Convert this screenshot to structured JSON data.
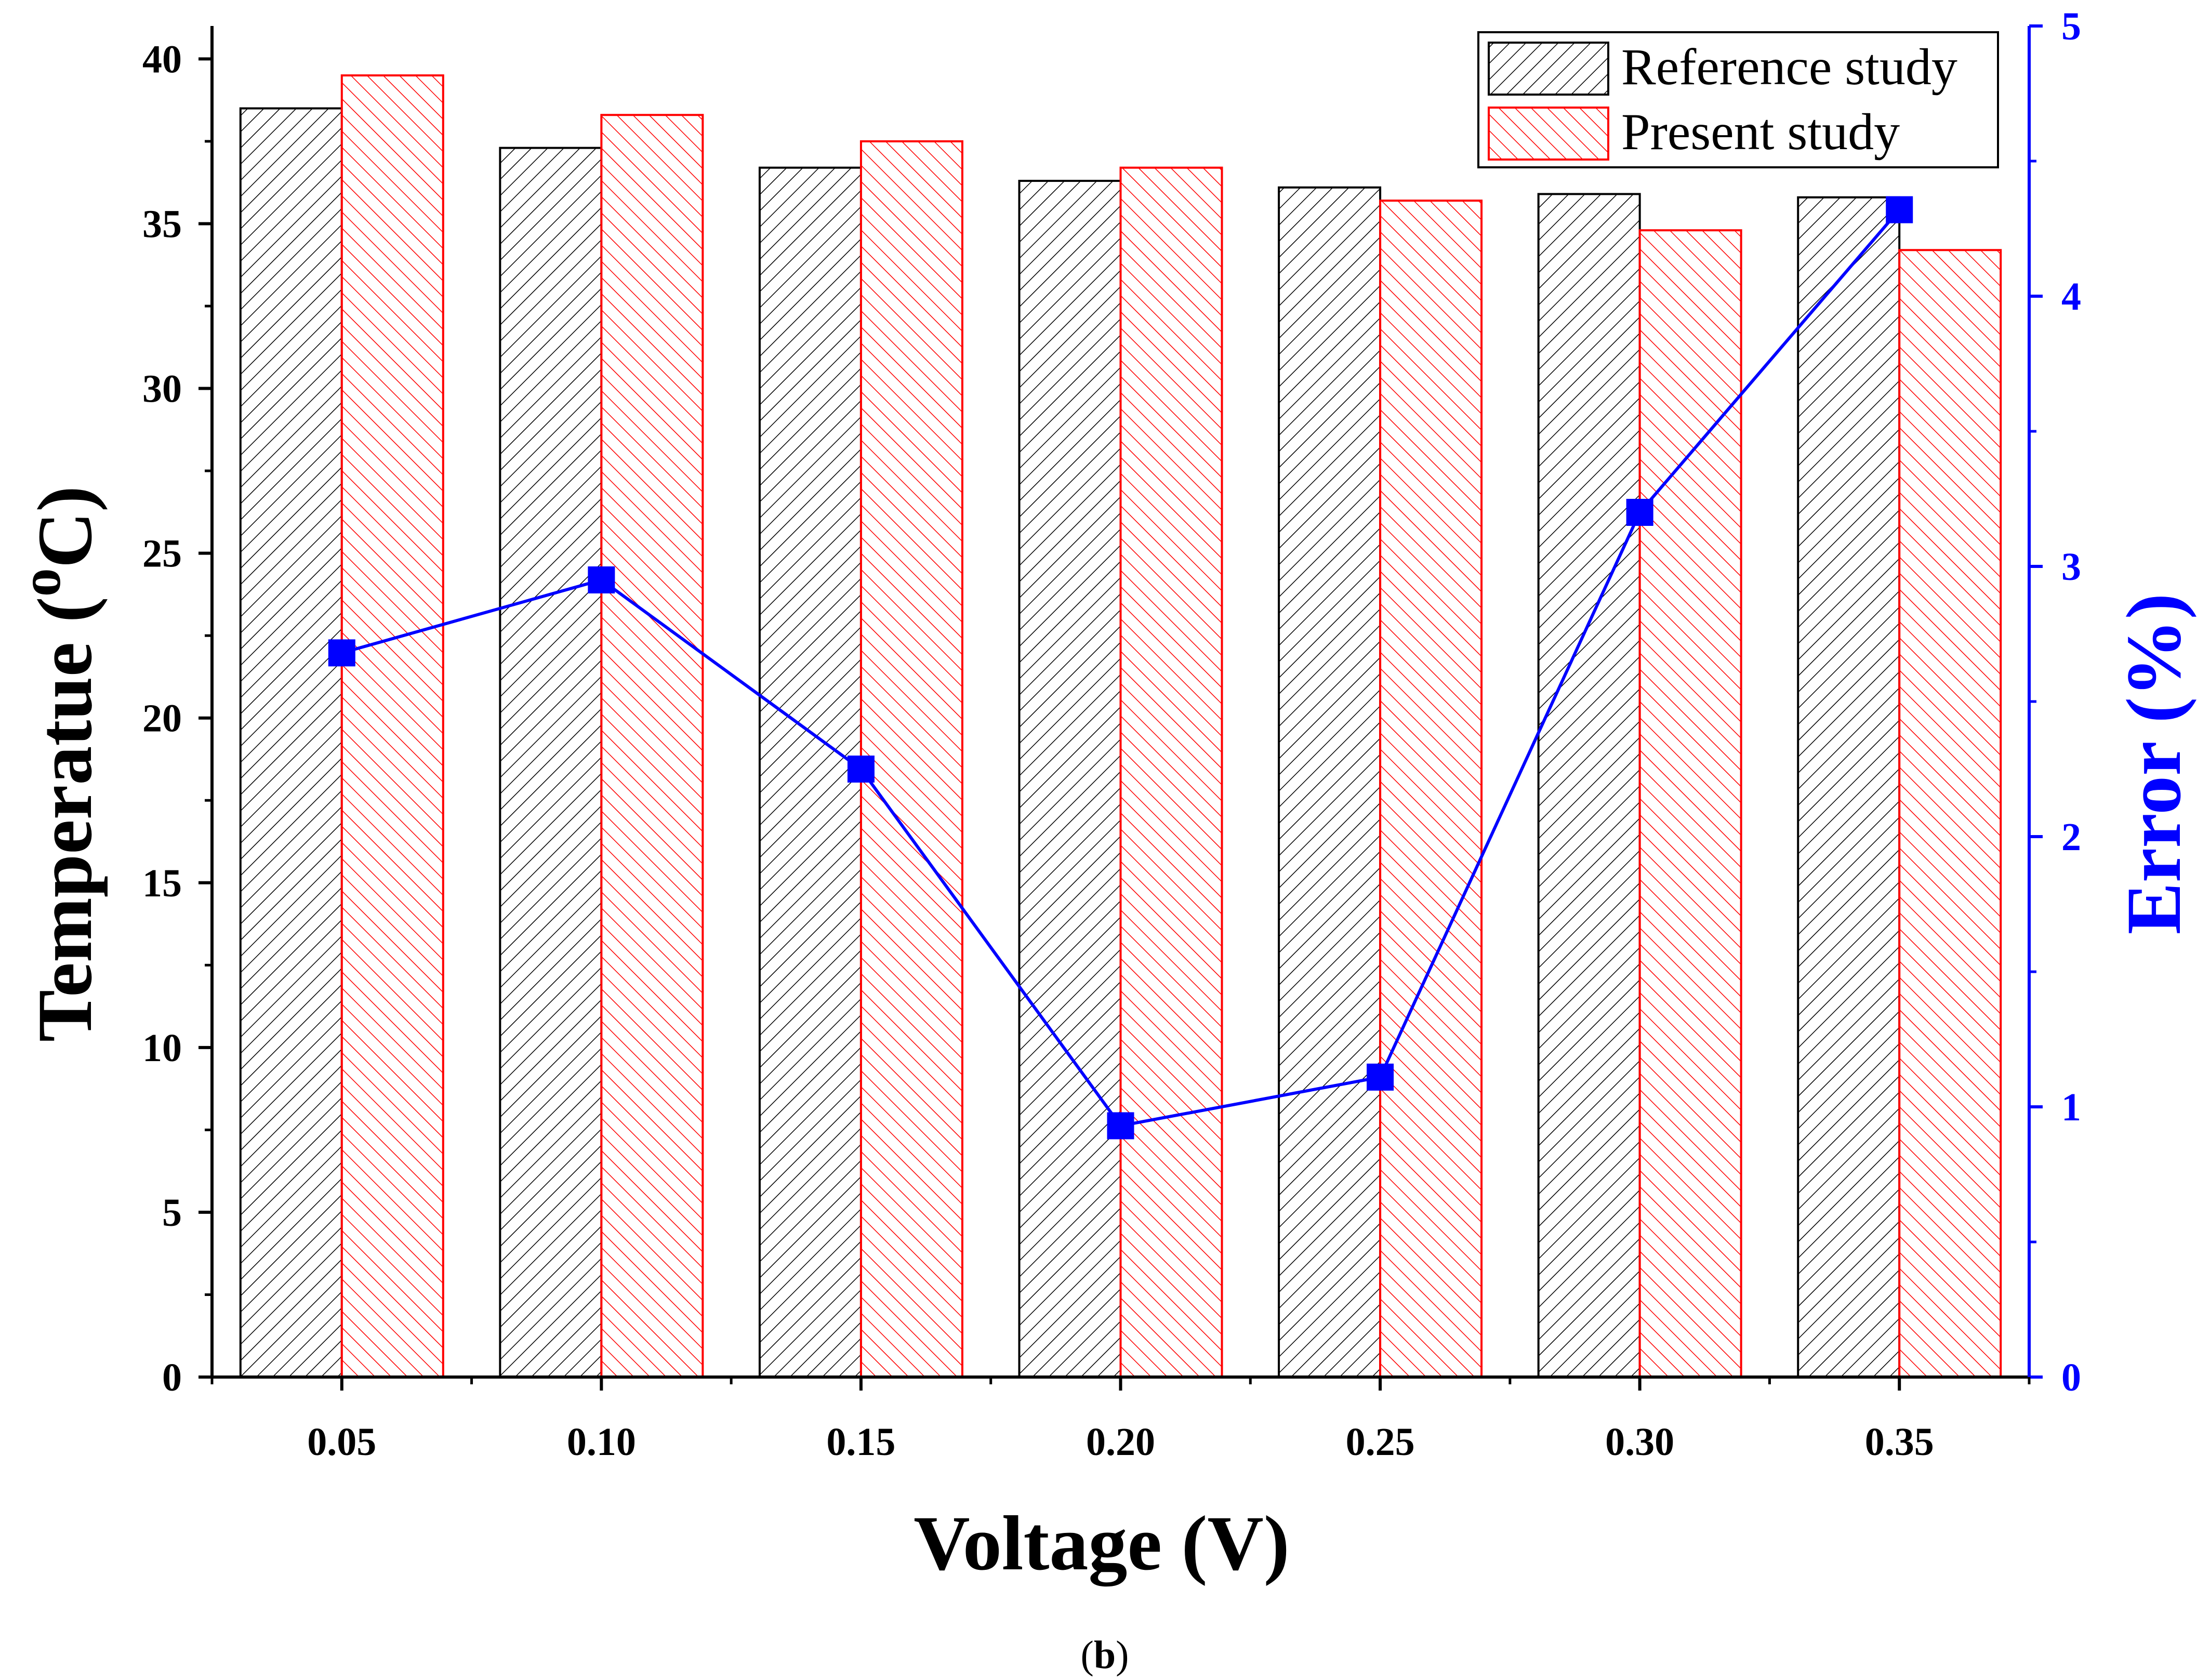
{
  "chart_data": {
    "type": "bar",
    "categories": [
      "0.05",
      "0.10",
      "0.15",
      "0.20",
      "0.25",
      "0.30",
      "0.35"
    ],
    "series": [
      {
        "name": "Reference study",
        "axis": "left",
        "kind": "bar",
        "pattern": "hatch-forward",
        "color": "#000000",
        "values": [
          38.5,
          37.3,
          36.7,
          36.3,
          36.1,
          35.9,
          35.8
        ]
      },
      {
        "name": "Present study",
        "axis": "left",
        "kind": "bar",
        "pattern": "hatch-backward",
        "color": "#ff0000",
        "values": [
          39.5,
          38.3,
          37.5,
          36.7,
          35.7,
          34.8,
          34.2
        ]
      },
      {
        "name": "Error",
        "axis": "right",
        "kind": "line",
        "marker": "square",
        "color": "#0000ff",
        "values": [
          2.68,
          2.95,
          2.25,
          0.93,
          1.11,
          3.2,
          4.32
        ]
      }
    ],
    "xlabel": "Voltage (V)",
    "ylabel": {
      "text": "Temperatue (",
      "sup": "o",
      "unit": "C)"
    },
    "y2label": "Error (%)",
    "ylim": [
      0,
      41
    ],
    "y2lim": [
      0,
      5
    ],
    "yticks": [
      0,
      5,
      10,
      15,
      20,
      25,
      30,
      35,
      40
    ],
    "y2ticks": [
      0,
      1,
      2,
      3,
      4,
      5
    ],
    "legend_position": "top-right",
    "grid": false,
    "caption": "(b)",
    "caption_letter": "b"
  }
}
